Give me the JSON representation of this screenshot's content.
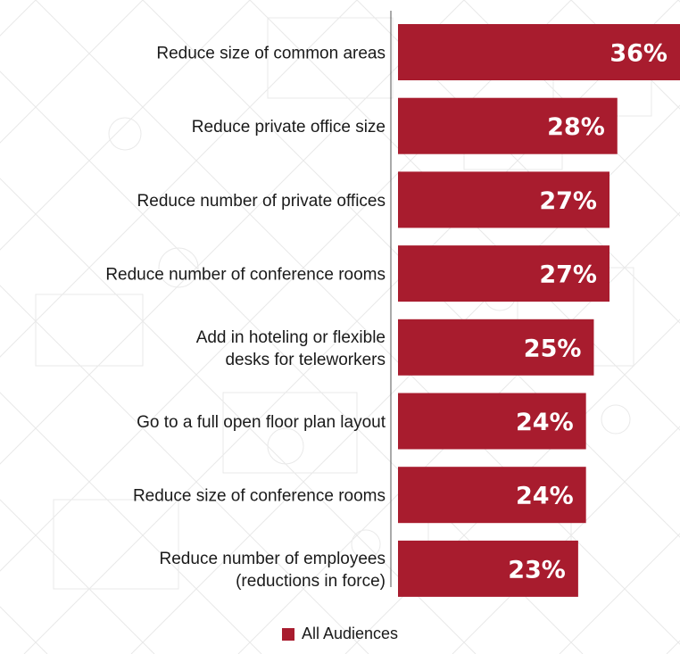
{
  "colors": {
    "bar": "#a81c2e",
    "axis": "#555555",
    "text": "#1a1a1a"
  },
  "legend": {
    "label": "All Audiences"
  },
  "chart_data": {
    "type": "bar",
    "orientation": "horizontal",
    "categories": [
      [
        "Reduce size of common areas"
      ],
      [
        "Reduce private office size"
      ],
      [
        "Reduce number of private offices"
      ],
      [
        "Reduce number of conference rooms"
      ],
      [
        "Add in hoteling or flexible",
        "desks for teleworkers"
      ],
      [
        "Go to a full open floor plan layout"
      ],
      [
        "Reduce size of conference rooms"
      ],
      [
        "Reduce number of employees",
        "(reductions in force)"
      ]
    ],
    "series": [
      {
        "name": "All Audiences",
        "values": [
          36,
          28,
          27,
          27,
          25,
          24,
          24,
          23
        ],
        "labels": [
          "36%",
          "28%",
          "27%",
          "27%",
          "25%",
          "24%",
          "24%",
          "23%"
        ]
      }
    ],
    "xlim": [
      0,
      36
    ],
    "grid": false,
    "legend_position": "bottom-center"
  }
}
